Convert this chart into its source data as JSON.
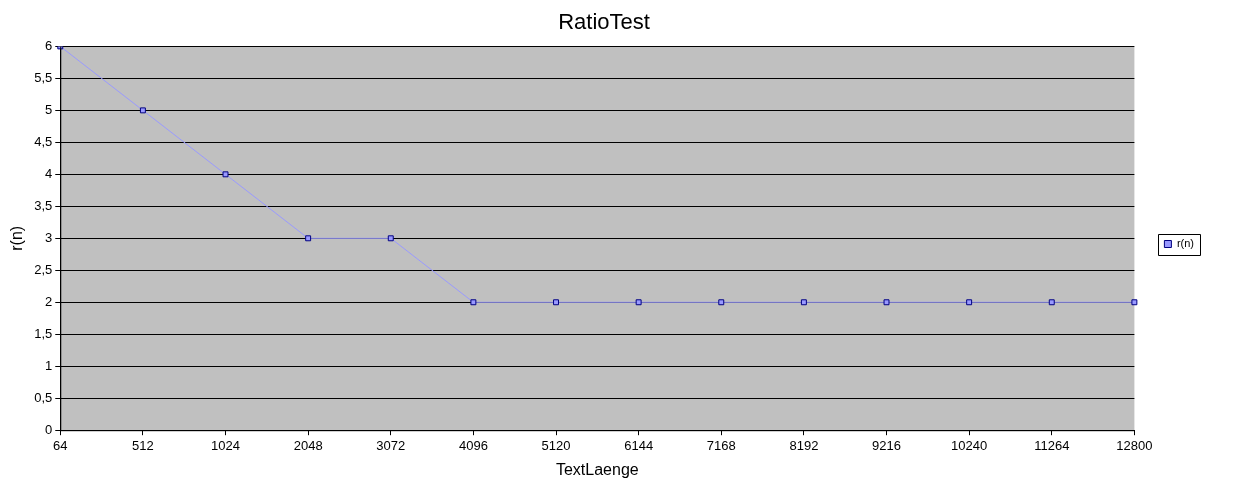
{
  "chart_data": {
    "type": "line",
    "title": "RatioTest",
    "xlabel": "TextLaenge",
    "ylabel": "r(n)",
    "categories": [
      "64",
      "512",
      "1024",
      "2048",
      "3072",
      "4096",
      "5120",
      "6144",
      "7168",
      "8192",
      "9216",
      "10240",
      "11264",
      "12800"
    ],
    "series": [
      {
        "name": "r(n)",
        "color": "#9999ff",
        "values": [
          6,
          5,
          4,
          3,
          3,
          2,
          2,
          2,
          2,
          2,
          2,
          2,
          2,
          2
        ]
      }
    ],
    "ylim": [
      0,
      6
    ],
    "yticks": [
      0,
      {
        "value": 0.5,
        "label": "0,5"
      },
      1,
      {
        "value": 1.5,
        "label": "1,5"
      },
      2,
      {
        "value": 2.5,
        "label": "2,5"
      },
      3,
      {
        "value": 3.5,
        "label": "3,5"
      },
      4,
      {
        "value": 4.5,
        "label": "4,5"
      },
      5,
      {
        "value": 5.5,
        "label": "5,5"
      },
      6
    ],
    "grid": "y",
    "legend": "right",
    "marker": "square",
    "line_style": "solid"
  }
}
